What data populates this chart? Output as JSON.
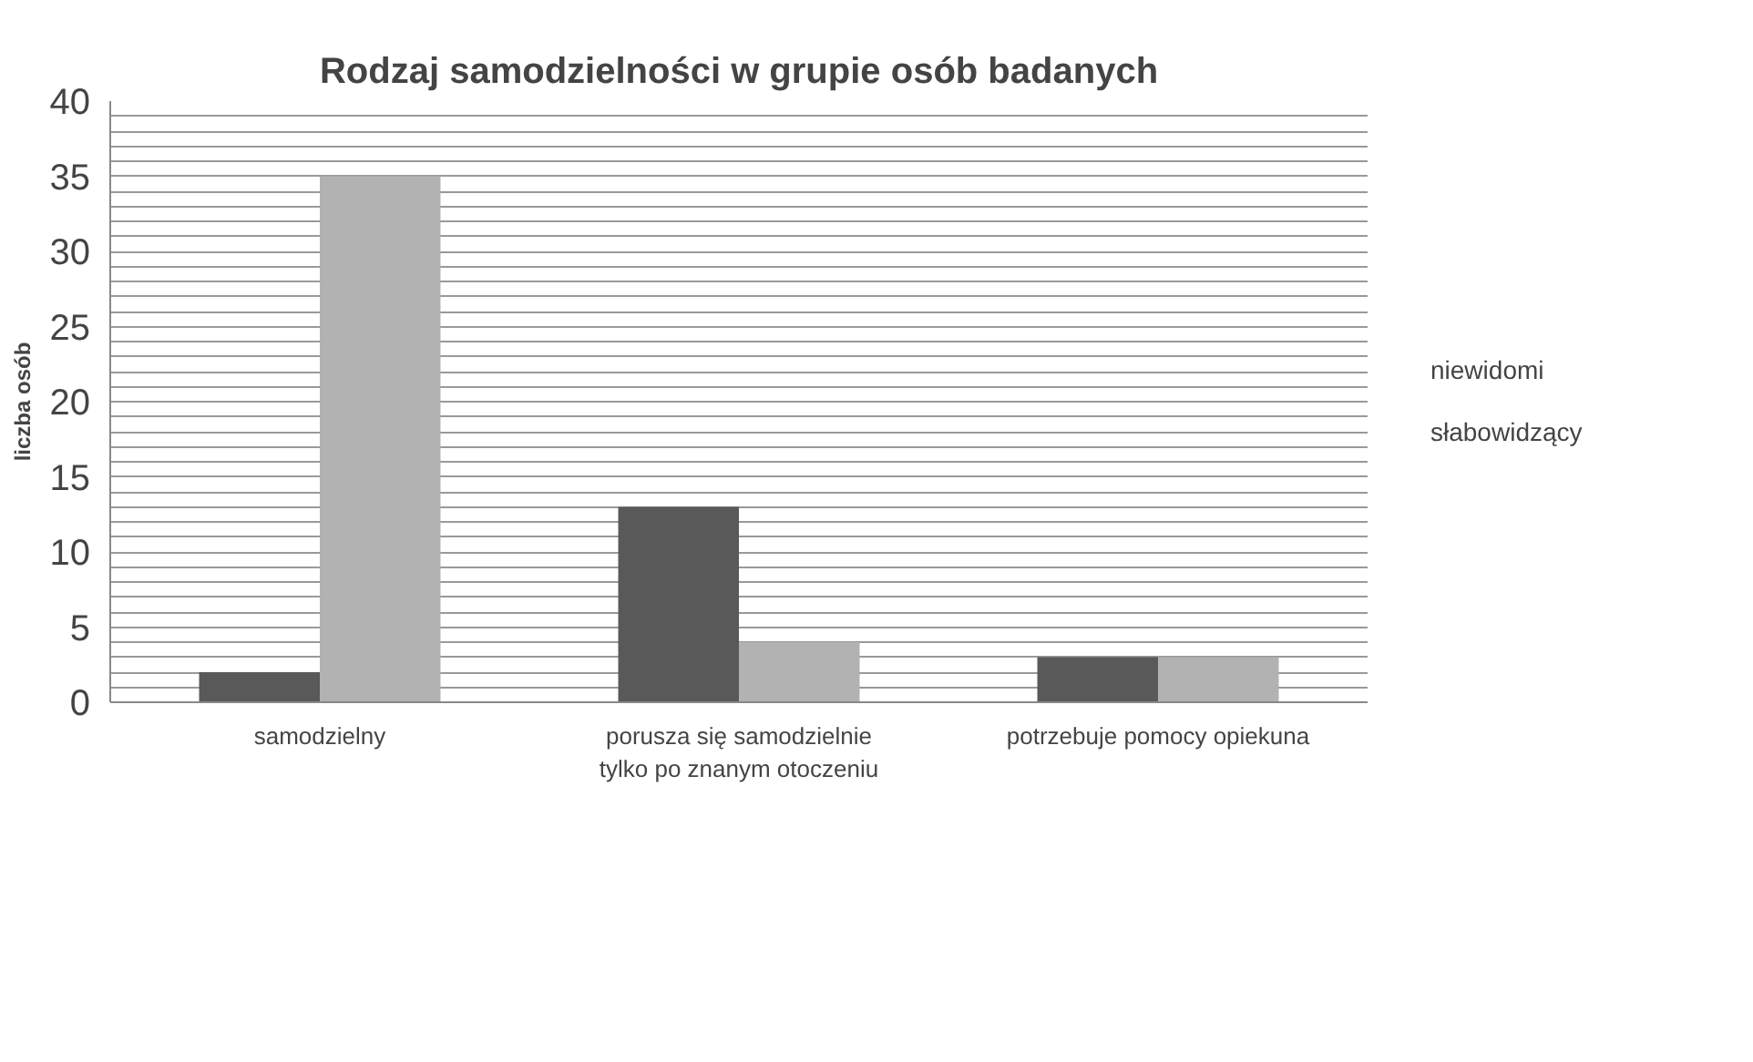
{
  "chart_data": {
    "type": "bar",
    "title": "Rodzaj samodzielności w grupie osób badanych",
    "ylabel": "liczba osób",
    "categories": [
      "samodzielny",
      "porusza się samodzielnie\ntylko po znanym otoczeniu",
      "potrzebuje pomocy opiekuna"
    ],
    "series": [
      {
        "name": "niewidomi",
        "color": "#595959",
        "values": [
          2,
          13,
          3
        ]
      },
      {
        "name": "słabowidzący",
        "color": "#b2b2b2",
        "values": [
          35,
          4,
          3
        ]
      }
    ],
    "ylim": [
      0,
      40
    ],
    "yticks": [
      0,
      {
        "value": 1,
        "label": null
      },
      {
        "value": 2,
        "label": null
      },
      {
        "value": 3,
        "label": null
      },
      {
        "value": 4,
        "label": null
      },
      5,
      {
        "value": 6,
        "label": null
      },
      {
        "value": 7,
        "label": null
      },
      {
        "value": 8,
        "label": null
      },
      {
        "value": 9,
        "label": null
      },
      10,
      {
        "value": 11,
        "label": null
      },
      {
        "value": 12,
        "label": null
      },
      {
        "value": 13,
        "label": null
      },
      {
        "value": 14,
        "label": null
      },
      15,
      {
        "value": 16,
        "label": null
      },
      {
        "value": 17,
        "label": null
      },
      {
        "value": 18,
        "label": null
      },
      {
        "value": 19,
        "label": null
      },
      20,
      {
        "value": 21,
        "label": null
      },
      {
        "value": 22,
        "label": null
      },
      {
        "value": 23,
        "label": null
      },
      {
        "value": 24,
        "label": null
      },
      25,
      {
        "value": 26,
        "label": null
      },
      {
        "value": 27,
        "label": null
      },
      {
        "value": 28,
        "label": null
      },
      {
        "value": 29,
        "label": null
      },
      30,
      {
        "value": 31,
        "label": null
      },
      {
        "value": 32,
        "label": null
      },
      {
        "value": 33,
        "label": null
      },
      {
        "value": 34,
        "label": null
      },
      35,
      {
        "value": 36,
        "label": null
      },
      {
        "value": 37,
        "label": null
      },
      {
        "value": 38,
        "label": null
      },
      {
        "value": 39,
        "label": null
      },
      40
    ],
    "grid": "y",
    "legend": "right"
  }
}
